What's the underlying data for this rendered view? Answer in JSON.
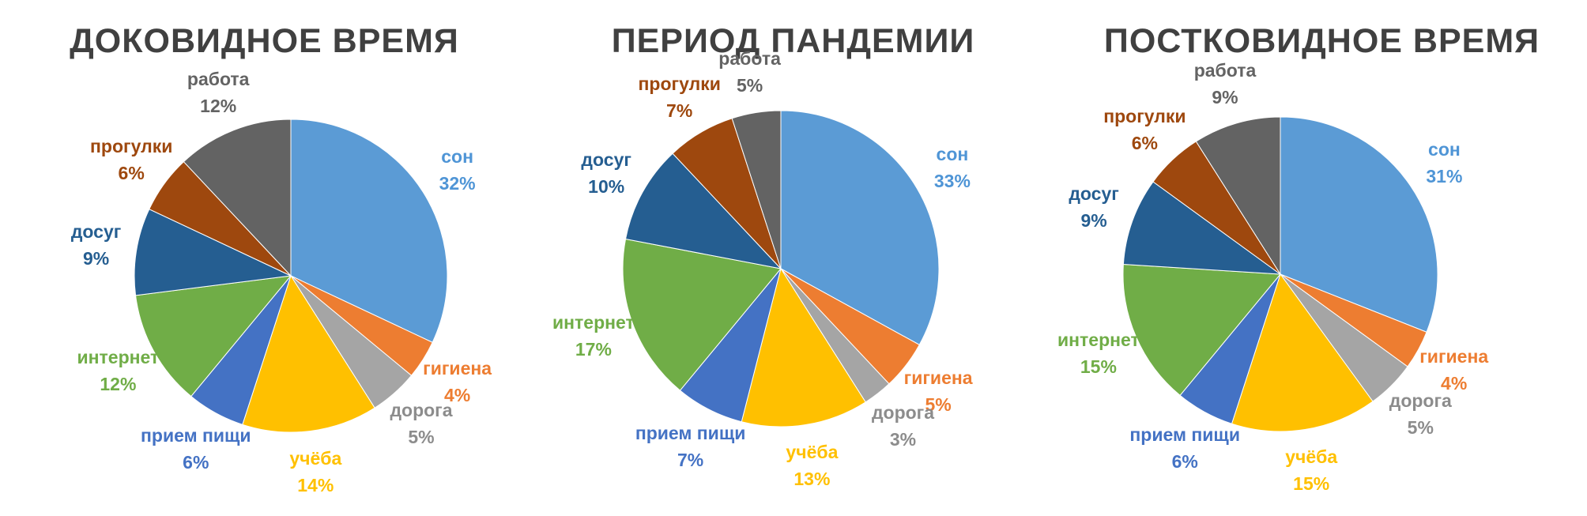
{
  "colors": {
    "сон": "#5B9BD5",
    "гигиена": "#ED7D31",
    "дорога": "#A5A5A5",
    "учёба": "#FFC000",
    "прием пищи": "#4472C4",
    "интернет": "#70AD47",
    "досуг": "#255E91",
    "прогулки": "#9E480E",
    "работа": "#636363"
  },
  "chart_data": [
    {
      "type": "pie",
      "title": "ДОКОВИДНОЕ ВРЕМЯ",
      "categories": [
        "сон",
        "гигиена",
        "дорога",
        "учёба",
        "прием пищи",
        "интернет",
        "досуг",
        "прогулки",
        "работа"
      ],
      "values": [
        32,
        4,
        5,
        14,
        6,
        12,
        9,
        6,
        12
      ],
      "labels": [
        "32%",
        "4%",
        "5%",
        "14%",
        "6%",
        "12%",
        "9%",
        "6%",
        "12%"
      ]
    },
    {
      "type": "pie",
      "title": "ПЕРИОД ПАНДЕМИИ",
      "categories": [
        "сон",
        "гигиена",
        "дорога",
        "учёба",
        "прием пищи",
        "интернет",
        "досуг",
        "прогулки",
        "работа"
      ],
      "values": [
        33,
        5,
        3,
        13,
        7,
        17,
        10,
        7,
        5
      ],
      "labels": [
        "33%",
        "5%",
        "3%",
        "13%",
        "7%",
        "17%",
        "10%",
        "7%",
        "5%"
      ]
    },
    {
      "type": "pie",
      "title": "ПОСТКОВИДНОЕ ВРЕМЯ",
      "categories": [
        "сон",
        "гигиена",
        "дорога",
        "учёба",
        "прием пищи",
        "интернет",
        "досуг",
        "прогулки",
        "работа"
      ],
      "values": [
        31,
        4,
        5,
        15,
        6,
        15,
        9,
        6,
        9
      ],
      "labels": [
        "31%",
        "4%",
        "5%",
        "15%",
        "6%",
        "15%",
        "9%",
        "6%",
        "9%"
      ]
    }
  ]
}
